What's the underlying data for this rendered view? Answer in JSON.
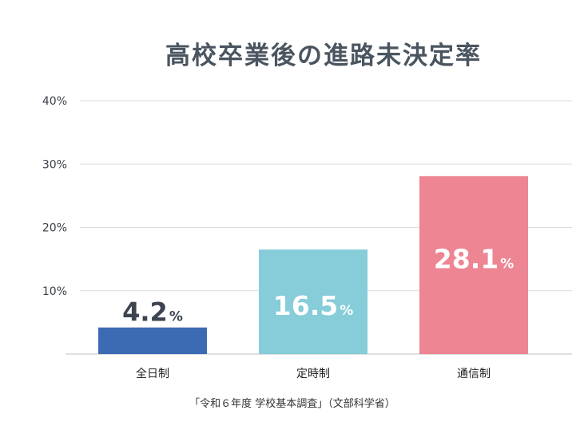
{
  "chart_data": {
    "type": "bar",
    "title": "高校卒業後の進路未決定率",
    "categories": [
      "全日制",
      "定時制",
      "通信制"
    ],
    "values": [
      4.2,
      16.5,
      28.1
    ],
    "value_labels": [
      "4.2",
      "16.5",
      "28.1"
    ],
    "value_unit": "%",
    "colors": [
      "#3d6bb3",
      "#86ccd9",
      "#ee8593"
    ],
    "yticks": [
      "10%",
      "20%",
      "30%",
      "40%"
    ],
    "ytick_values": [
      10,
      20,
      30,
      40
    ],
    "ylim": [
      0,
      40
    ],
    "grid": true,
    "source": "「令和６年度 学校基本調査」（文部科学省）"
  }
}
